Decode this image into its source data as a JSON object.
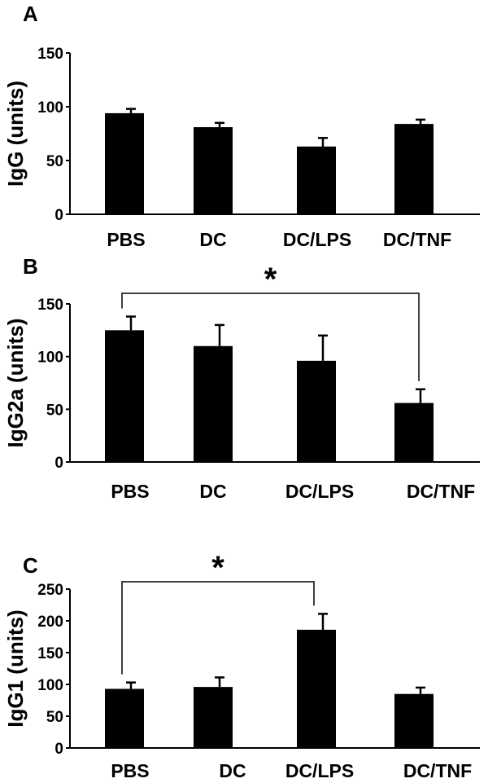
{
  "figure": {
    "colors": {
      "bar": "#000000",
      "axis": "#000000",
      "background": "#ffffff"
    }
  },
  "chart_data": [
    {
      "type": "bar",
      "panel": "A",
      "title": "",
      "xlabel": "",
      "ylabel": "IgG (units)",
      "ylim": [
        0,
        150
      ],
      "yticks": [
        "0",
        "50",
        "100",
        "150"
      ],
      "grid": false,
      "categories": [
        "PBS",
        "DC",
        "DC/LPS",
        "DC/TNF"
      ],
      "values": [
        94,
        81,
        63,
        84
      ],
      "errors": [
        4,
        4,
        8,
        4
      ],
      "significance": []
    },
    {
      "type": "bar",
      "panel": "B",
      "title": "",
      "xlabel": "",
      "ylabel": "IgG2a (units)",
      "ylim": [
        0,
        150
      ],
      "yticks": [
        "0",
        "50",
        "100",
        "150"
      ],
      "grid": false,
      "categories": [
        "PBS",
        "DC",
        "DC/LPS",
        "DC/TNF"
      ],
      "values": [
        125,
        110,
        96,
        56
      ],
      "errors": [
        13,
        20,
        24,
        13
      ],
      "significance": [
        {
          "from": 0,
          "to": 3,
          "label": "*"
        }
      ]
    },
    {
      "type": "bar",
      "panel": "C",
      "title": "",
      "xlabel": "",
      "ylabel": "IgG1 (units)",
      "ylim": [
        0,
        250
      ],
      "yticks": [
        "0",
        "50",
        "100",
        "150",
        "200",
        "250"
      ],
      "grid": false,
      "categories": [
        "PBS",
        "DC",
        "DC/LPS",
        "DC/TNF"
      ],
      "values": [
        93,
        96,
        186,
        85
      ],
      "errors": [
        10,
        15,
        25,
        10
      ],
      "significance": [
        {
          "from": 0,
          "to": 2,
          "label": "*"
        }
      ]
    }
  ]
}
